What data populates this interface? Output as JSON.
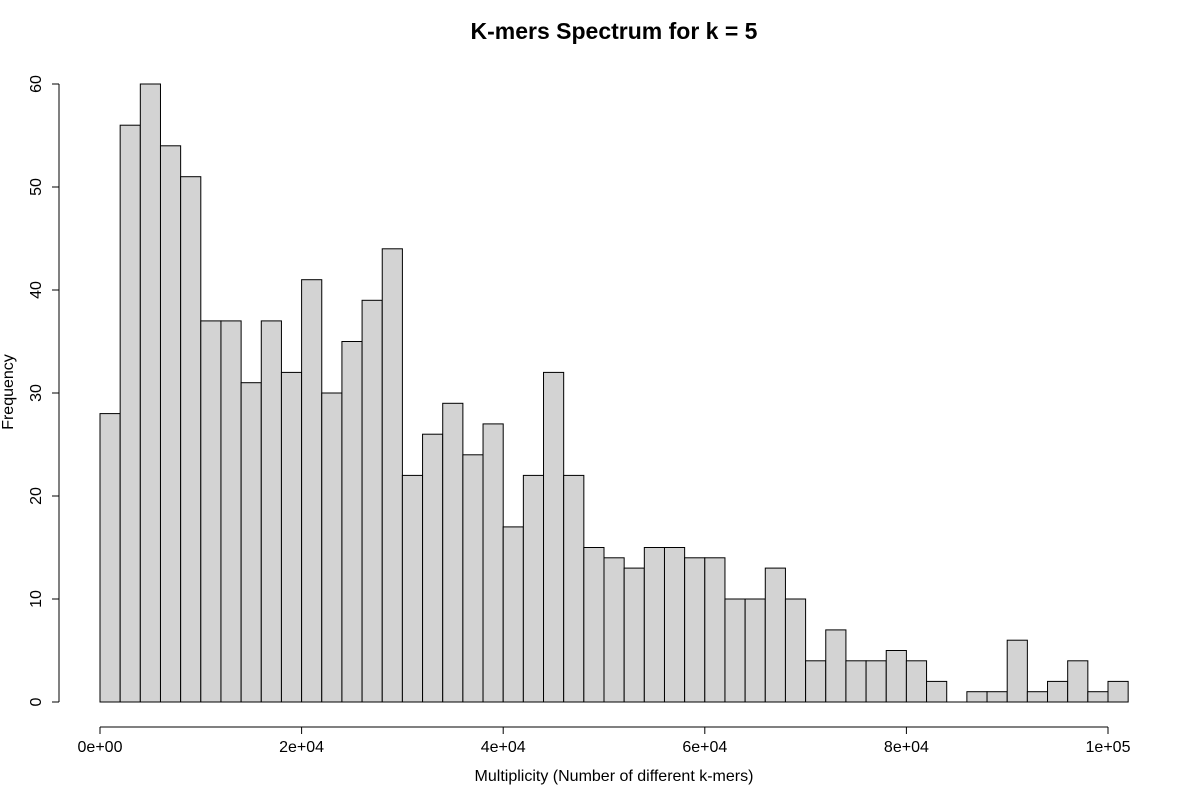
{
  "chart_data": {
    "type": "bar",
    "title": "K-mers Spectrum for k =  5",
    "xlabel": "Multiplicity (Number of different k-mers)",
    "ylabel": "Frequency",
    "bin_width": 2000,
    "x_start": 0,
    "xlim": [
      0,
      100000
    ],
    "ylim": [
      0,
      60
    ],
    "x_ticks": [
      0,
      20000,
      40000,
      60000,
      80000,
      100000
    ],
    "x_tick_labels": [
      "0e+00",
      "2e+04",
      "4e+04",
      "6e+04",
      "8e+04",
      "1e+05"
    ],
    "y_ticks": [
      0,
      10,
      20,
      30,
      40,
      50,
      60
    ],
    "y_tick_labels": [
      "0",
      "10",
      "20",
      "30",
      "40",
      "50",
      "60"
    ],
    "values": [
      28,
      56,
      60,
      54,
      51,
      37,
      37,
      31,
      37,
      32,
      41,
      30,
      35,
      39,
      44,
      22,
      26,
      29,
      24,
      27,
      17,
      22,
      32,
      22,
      15,
      14,
      13,
      15,
      15,
      14,
      14,
      10,
      10,
      13,
      10,
      4,
      7,
      4,
      4,
      5,
      4,
      2,
      0,
      1,
      1,
      6,
      1,
      2,
      4,
      1,
      2
    ],
    "bar_fill": "#d3d3d3",
    "bar_stroke": "#000000",
    "grid": false
  }
}
